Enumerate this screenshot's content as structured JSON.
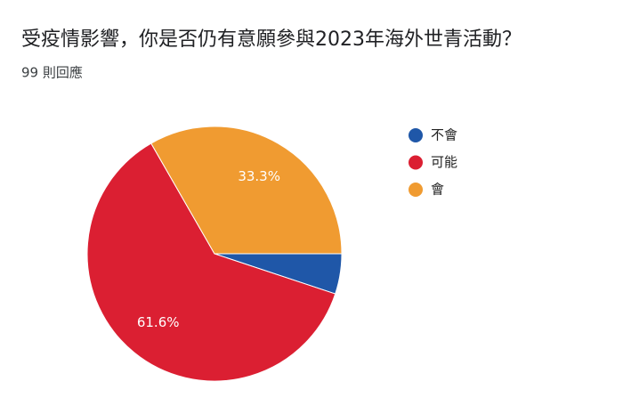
{
  "chart_data": {
    "type": "pie",
    "title": "受疫情影響，你是否仍有意願參與2023年海外世青活動？",
    "subtitle": "99 則回應",
    "categories": [
      "不會",
      "可能",
      "會"
    ],
    "values": [
      5.1,
      61.6,
      33.3
    ],
    "value_labels": [
      null,
      "61.6%",
      "33.3%"
    ],
    "colors": [
      "#1f57a8",
      "#db1f32",
      "#f09b31"
    ],
    "legend": "right"
  }
}
